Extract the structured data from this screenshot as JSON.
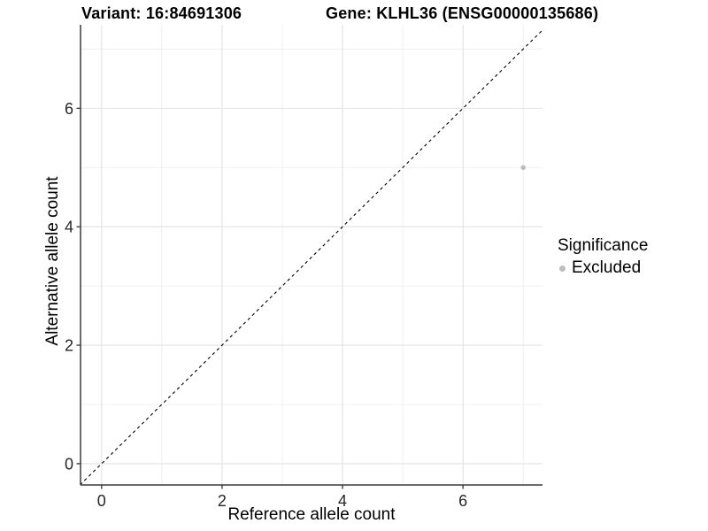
{
  "chart_data": {
    "type": "scatter",
    "titles": [
      "Variant: 16:84691306",
      "Gene: KLHL36 (ENSG00000135686)"
    ],
    "xlabel": "Reference allele count",
    "ylabel": "Alternative allele count",
    "xlim": [
      -0.35,
      7.32
    ],
    "ylim": [
      -0.36,
      7.41
    ],
    "x_ticks": [
      0,
      2,
      4,
      6
    ],
    "y_ticks": [
      0,
      2,
      4,
      6
    ],
    "x_minor_ticks": [
      1,
      3,
      5,
      7
    ],
    "y_minor_ticks": [
      1,
      3,
      5,
      7
    ],
    "grid": true,
    "legend_position": "right",
    "legend": {
      "title": "Significance",
      "items": [
        {
          "label": "Excluded",
          "color": "#bebebe"
        }
      ]
    },
    "series": [
      {
        "name": "Excluded",
        "color": "#bcbcbc",
        "points": [
          {
            "x": 7,
            "y": 5
          }
        ]
      }
    ],
    "reference_line": {
      "type": "identity",
      "equation": "y = x",
      "style": "dashed",
      "color": "#000000"
    }
  },
  "colors": {
    "background": "#ffffff",
    "grid_major": "#e2e2e2",
    "grid_minor": "#ececec",
    "axis_line": "#3a3a3a",
    "tick_mark": "#333333",
    "tick_text": "#262626",
    "point": "#bcbcbc",
    "reference_line": "#000000"
  }
}
